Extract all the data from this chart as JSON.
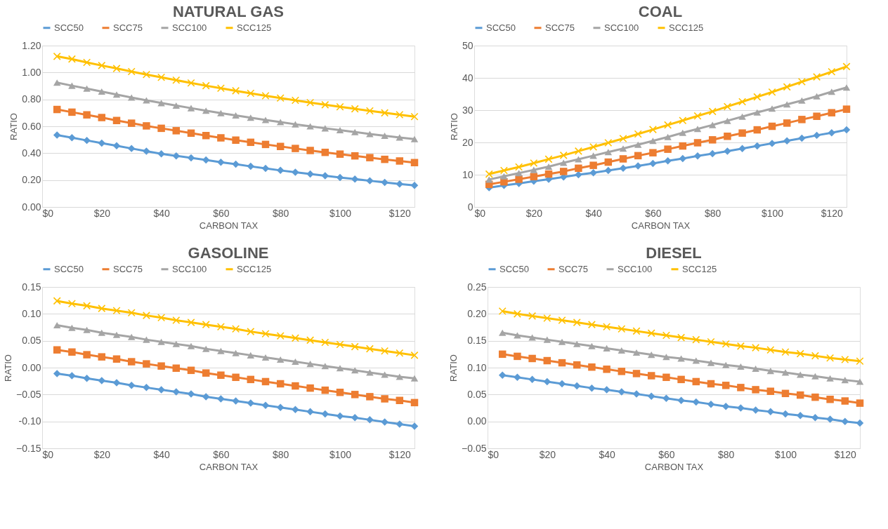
{
  "chart_data": [
    {
      "type": "line",
      "title": "NATURAL  GAS",
      "xlabel": "CARBON TAX",
      "ylabel": "RATIO",
      "legend": "top",
      "grid": "y",
      "x": [
        5,
        10,
        15,
        20,
        25,
        30,
        35,
        40,
        45,
        50,
        55,
        60,
        65,
        70,
        75,
        80,
        85,
        90,
        95,
        100,
        105,
        110,
        115,
        120,
        125
      ],
      "xlim": [
        0,
        125
      ],
      "xticks": [
        {
          "value": 0,
          "label": "$0"
        },
        {
          "value": 20,
          "label": "$20"
        },
        {
          "value": 40,
          "label": "$40"
        },
        {
          "value": 60,
          "label": "$60"
        },
        {
          "value": 80,
          "label": "$80"
        },
        {
          "value": 100,
          "label": "$100"
        },
        {
          "value": 120,
          "label": "$120"
        }
      ],
      "ylim": [
        0,
        1.2
      ],
      "yticks": [
        {
          "value": 0,
          "label": "0.00"
        },
        {
          "value": 0.2,
          "label": "0.20"
        },
        {
          "value": 0.4,
          "label": "0.40"
        },
        {
          "value": 0.6,
          "label": "0.60"
        },
        {
          "value": 0.8,
          "label": "0.80"
        },
        {
          "value": 1,
          "label": "1.00"
        },
        {
          "value": 1.2,
          "label": "1.20"
        }
      ],
      "series": [
        {
          "name": "SCC50",
          "color": "#5b9bd5",
          "marker": "diamond",
          "values": [
            0.535,
            0.515,
            0.495,
            0.475,
            0.455,
            0.435,
            0.415,
            0.395,
            0.38,
            0.365,
            0.35,
            0.333,
            0.318,
            0.302,
            0.287,
            0.272,
            0.258,
            0.245,
            0.232,
            0.219,
            0.207,
            0.195,
            0.183,
            0.171,
            0.16
          ]
        },
        {
          "name": "SCC75",
          "color": "#ed7d31",
          "marker": "square",
          "values": [
            0.725,
            0.705,
            0.685,
            0.665,
            0.643,
            0.623,
            0.603,
            0.585,
            0.567,
            0.549,
            0.531,
            0.514,
            0.497,
            0.481,
            0.465,
            0.45,
            0.435,
            0.42,
            0.406,
            0.393,
            0.38,
            0.367,
            0.354,
            0.342,
            0.33
          ]
        },
        {
          "name": "SCC100",
          "color": "#a5a5a5",
          "marker": "triangle",
          "values": [
            0.925,
            0.902,
            0.88,
            0.858,
            0.836,
            0.814,
            0.793,
            0.773,
            0.754,
            0.735,
            0.716,
            0.698,
            0.681,
            0.664,
            0.647,
            0.631,
            0.615,
            0.6,
            0.585,
            0.571,
            0.557,
            0.543,
            0.53,
            0.517,
            0.505
          ]
        },
        {
          "name": "SCC125",
          "color": "#ffc000",
          "marker": "cross",
          "values": [
            1.12,
            1.1,
            1.075,
            1.052,
            1.03,
            1.007,
            0.985,
            0.964,
            0.943,
            0.922,
            0.902,
            0.883,
            0.864,
            0.845,
            0.827,
            0.81,
            0.793,
            0.776,
            0.76,
            0.745,
            0.73,
            0.715,
            0.7,
            0.686,
            0.672
          ]
        }
      ]
    },
    {
      "type": "line",
      "title": "COAL",
      "xlabel": "CARBON TAX",
      "ylabel": "RATIO",
      "legend": "top",
      "grid": "y",
      "x": [
        5,
        10,
        15,
        20,
        25,
        30,
        35,
        40,
        45,
        50,
        55,
        60,
        65,
        70,
        75,
        80,
        85,
        90,
        95,
        100,
        105,
        110,
        115,
        120,
        125
      ],
      "xlim": [
        0,
        125
      ],
      "xticks": [
        {
          "value": 0,
          "label": "$0"
        },
        {
          "value": 20,
          "label": "$20"
        },
        {
          "value": 40,
          "label": "$40"
        },
        {
          "value": 60,
          "label": "$60"
        },
        {
          "value": 80,
          "label": "$80"
        },
        {
          "value": 100,
          "label": "$100"
        },
        {
          "value": 120,
          "label": "$120"
        }
      ],
      "ylim": [
        0,
        50
      ],
      "yticks": [
        0,
        10,
        20,
        30,
        40,
        50
      ],
      "series": [
        {
          "name": "SCC50",
          "color": "#5b9bd5",
          "marker": "diamond",
          "values": [
            6,
            6.7,
            7.3,
            8,
            8.6,
            9.3,
            10,
            10.6,
            11.3,
            12,
            12.7,
            13.5,
            14.3,
            15,
            15.8,
            16.5,
            17.3,
            18.1,
            18.9,
            19.7,
            20.5,
            21.3,
            22.2,
            23,
            23.9
          ]
        },
        {
          "name": "SCC75",
          "color": "#ed7d31",
          "marker": "square",
          "values": [
            7,
            7.8,
            8.6,
            9.4,
            10.2,
            11,
            12,
            12.9,
            13.9,
            14.9,
            15.9,
            16.8,
            17.9,
            18.9,
            19.9,
            20.8,
            21.9,
            22.9,
            23.9,
            25,
            26,
            27.1,
            28.1,
            29.2,
            30.3
          ]
        },
        {
          "name": "SCC100",
          "color": "#a5a5a5",
          "marker": "triangle",
          "values": [
            8.5,
            9.5,
            10.5,
            11.5,
            12.5,
            13.7,
            14.8,
            15.9,
            17,
            18.1,
            19.3,
            20.5,
            21.7,
            23,
            24.2,
            25.4,
            26.7,
            28,
            29.3,
            30.5,
            31.8,
            33,
            34.3,
            35.7,
            37
          ]
        },
        {
          "name": "SCC125",
          "color": "#ffc000",
          "marker": "cross",
          "values": [
            10.2,
            11.3,
            12.4,
            13.6,
            14.8,
            16,
            17.3,
            18.6,
            19.9,
            21.2,
            22.6,
            24,
            25.4,
            26.8,
            28.2,
            29.6,
            31.1,
            32.6,
            34.1,
            35.6,
            37.2,
            38.8,
            40.3,
            41.9,
            43.5
          ]
        }
      ]
    },
    {
      "type": "line",
      "title": "GASOLINE",
      "xlabel": "CARBON TAX",
      "ylabel": "RATIO",
      "legend": "top",
      "grid": "y",
      "x": [
        5,
        10,
        15,
        20,
        25,
        30,
        35,
        40,
        45,
        50,
        55,
        60,
        65,
        70,
        75,
        80,
        85,
        90,
        95,
        100,
        105,
        110,
        115,
        120,
        125
      ],
      "xlim": [
        0,
        125
      ],
      "xticks": [
        {
          "value": 0,
          "label": "$0"
        },
        {
          "value": 20,
          "label": "$20"
        },
        {
          "value": 40,
          "label": "$40"
        },
        {
          "value": 60,
          "label": "$60"
        },
        {
          "value": 80,
          "label": "$80"
        },
        {
          "value": 100,
          "label": "$100"
        },
        {
          "value": 120,
          "label": "$120"
        }
      ],
      "ylim": [
        -0.15,
        0.15
      ],
      "yticks": [
        -0.15,
        {
          "value": -0.1,
          "label": "-0.10"
        },
        -0.05,
        {
          "value": 0,
          "label": "0.00"
        },
        0.05,
        {
          "value": 0.1,
          "label": "0.10"
        },
        0.15
      ],
      "series": [
        {
          "name": "SCC50",
          "color": "#5b9bd5",
          "marker": "diamond",
          "values": [
            -0.011,
            -0.015,
            -0.02,
            -0.024,
            -0.028,
            -0.033,
            -0.037,
            -0.041,
            -0.045,
            -0.049,
            -0.054,
            -0.058,
            -0.062,
            -0.066,
            -0.07,
            -0.074,
            -0.078,
            -0.082,
            -0.086,
            -0.09,
            -0.093,
            -0.097,
            -0.101,
            -0.105,
            -0.109
          ]
        },
        {
          "name": "SCC75",
          "color": "#ed7d31",
          "marker": "square",
          "values": [
            0.033,
            0.029,
            0.024,
            0.02,
            0.016,
            0.011,
            0.007,
            0.003,
            -0.001,
            -0.005,
            -0.01,
            -0.014,
            -0.018,
            -0.022,
            -0.026,
            -0.03,
            -0.034,
            -0.038,
            -0.042,
            -0.046,
            -0.05,
            -0.054,
            -0.058,
            -0.061,
            -0.065
          ]
        },
        {
          "name": "SCC100",
          "color": "#a5a5a5",
          "marker": "triangle",
          "values": [
            0.079,
            0.074,
            0.07,
            0.065,
            0.061,
            0.057,
            0.052,
            0.048,
            0.044,
            0.04,
            0.035,
            0.031,
            0.027,
            0.023,
            0.019,
            0.015,
            0.011,
            0.007,
            0.003,
            -0.001,
            -0.005,
            -0.009,
            -0.013,
            -0.017,
            -0.02
          ]
        },
        {
          "name": "SCC125",
          "color": "#ffc000",
          "marker": "cross",
          "values": [
            0.124,
            0.119,
            0.115,
            0.11,
            0.106,
            0.102,
            0.097,
            0.093,
            0.088,
            0.084,
            0.08,
            0.076,
            0.072,
            0.067,
            0.063,
            0.059,
            0.055,
            0.051,
            0.047,
            0.043,
            0.039,
            0.035,
            0.031,
            0.027,
            0.023
          ]
        }
      ]
    },
    {
      "type": "line",
      "title": "DIESEL",
      "xlabel": "CARBON TAX",
      "ylabel": "RATIO",
      "legend": "top",
      "grid": "y",
      "x": [
        5,
        10,
        15,
        20,
        25,
        30,
        35,
        40,
        45,
        50,
        55,
        60,
        65,
        70,
        75,
        80,
        85,
        90,
        95,
        100,
        105,
        110,
        115,
        120,
        125
      ],
      "xlim": [
        0,
        125
      ],
      "xticks": [
        {
          "value": 0,
          "label": "$0"
        },
        {
          "value": 20,
          "label": "$20"
        },
        {
          "value": 40,
          "label": "$40"
        },
        {
          "value": 60,
          "label": "$60"
        },
        {
          "value": 80,
          "label": "$80"
        },
        {
          "value": 100,
          "label": "$100"
        },
        {
          "value": 120,
          "label": "$120"
        }
      ],
      "ylim": [
        -0.05,
        0.25
      ],
      "yticks": [
        -0.05,
        {
          "value": 0,
          "label": "0.00"
        },
        0.05,
        {
          "value": 0.1,
          "label": "0.10"
        },
        0.15,
        {
          "value": 0.2,
          "label": "0.20"
        },
        0.25
      ],
      "series": [
        {
          "name": "SCC50",
          "color": "#5b9bd5",
          "marker": "diamond",
          "values": [
            0.086,
            0.082,
            0.078,
            0.074,
            0.07,
            0.066,
            0.062,
            0.059,
            0.055,
            0.051,
            0.047,
            0.043,
            0.039,
            0.036,
            0.032,
            0.028,
            0.025,
            0.021,
            0.018,
            0.014,
            0.011,
            0.007,
            0.004,
            0.0,
            -0.003
          ]
        },
        {
          "name": "SCC75",
          "color": "#ed7d31",
          "marker": "square",
          "values": [
            0.125,
            0.121,
            0.117,
            0.113,
            0.109,
            0.105,
            0.101,
            0.097,
            0.093,
            0.089,
            0.085,
            0.082,
            0.078,
            0.074,
            0.07,
            0.067,
            0.063,
            0.059,
            0.056,
            0.052,
            0.049,
            0.045,
            0.041,
            0.038,
            0.034
          ]
        },
        {
          "name": "SCC100",
          "color": "#a5a5a5",
          "marker": "triangle",
          "values": [
            0.165,
            0.16,
            0.156,
            0.152,
            0.148,
            0.144,
            0.14,
            0.136,
            0.132,
            0.128,
            0.124,
            0.12,
            0.117,
            0.113,
            0.109,
            0.105,
            0.102,
            0.098,
            0.094,
            0.091,
            0.087,
            0.084,
            0.08,
            0.077,
            0.074
          ]
        },
        {
          "name": "SCC125",
          "color": "#ffc000",
          "marker": "cross",
          "values": [
            0.205,
            0.2,
            0.196,
            0.192,
            0.188,
            0.184,
            0.18,
            0.176,
            0.172,
            0.168,
            0.164,
            0.16,
            0.156,
            0.152,
            0.148,
            0.144,
            0.14,
            0.137,
            0.133,
            0.129,
            0.126,
            0.122,
            0.118,
            0.115,
            0.112
          ]
        }
      ]
    }
  ]
}
